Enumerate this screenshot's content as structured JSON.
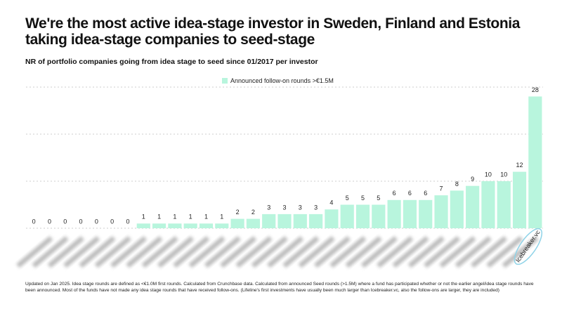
{
  "chart_data": {
    "type": "bar",
    "title": "We're the most active idea-stage investor in Sweden, Finland and Estonia taking idea-stage companies to seed-stage",
    "subtitle": "NR of portfolio companies going from idea stage to seed since 01/2017 per investor",
    "categories": [
      null,
      null,
      null,
      null,
      null,
      null,
      null,
      null,
      null,
      null,
      null,
      null,
      null,
      null,
      null,
      null,
      null,
      null,
      null,
      null,
      null,
      null,
      null,
      null,
      null,
      null,
      null,
      null,
      null,
      null,
      null,
      null,
      "Icebreaker.vc"
    ],
    "series": [
      {
        "name": "Announced follow-on rounds >€1.5M",
        "color": "#b8f5dd",
        "values": [
          0,
          0,
          0,
          0,
          0,
          0,
          0,
          1,
          1,
          1,
          1,
          1,
          1,
          2,
          2,
          3,
          3,
          3,
          3,
          4,
          5,
          5,
          5,
          6,
          6,
          6,
          7,
          8,
          9,
          10,
          10,
          12,
          28
        ]
      }
    ],
    "ylim": [
      0,
      30
    ],
    "yticks": [
      0,
      10,
      20,
      30
    ],
    "grid": true,
    "footnote": "Updated on Jan 2025. Idea stage rounds are defined as <€1.0M first rounds. Calculated from Crunchbase data. Calculated from announced Seed rounds (>1.5M) where a fund has participated whether or not the earlier angel/idea stage rounds have been announced. Most of the funds have not made any idea stage rounds that have received follow-ons. (Lifeline's first investments have usually been much larger than Icebreaker.vc, also the follow-ons are larger, they are included)"
  }
}
